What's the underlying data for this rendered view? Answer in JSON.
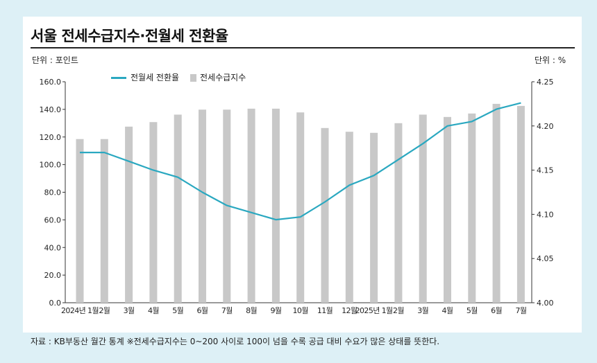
{
  "header": {
    "title": "서울 전세수급지수·전월세 전환율",
    "unit_left": "단위 : 포인트",
    "unit_right": "단위 : %"
  },
  "footer": {
    "source": "자료 : KB부동산 월간 통계 ※전세수급지수는 0~200 사이로 100이 넘을 수록 공급 대비 수요가 많은 상태를 뜻한다."
  },
  "colors": {
    "background": "#ddf0f6",
    "bar": "#c8c8c8",
    "line": "#2aa8c0"
  },
  "chart_data": {
    "type": "bar",
    "categories": [
      "2024년 1월",
      "2월",
      "3월",
      "4월",
      "5월",
      "6월",
      "7월",
      "8월",
      "9월",
      "10월",
      "11월",
      "12월",
      "2025년 1월",
      "2월",
      "3월",
      "4월",
      "5월",
      "6월",
      "7월"
    ],
    "series": [
      {
        "name": "전세수급지수",
        "type": "bar",
        "axis": "left",
        "values": [
          118.5,
          118.5,
          127.5,
          130.8,
          136.2,
          139.8,
          139.8,
          140.5,
          140.5,
          137.8,
          126.5,
          123.8,
          123.0,
          130.0,
          136.2,
          134.5,
          137.0,
          144.0,
          142.5
        ]
      },
      {
        "name": "전월세 전환율",
        "type": "line",
        "axis": "right",
        "values": [
          4.17,
          4.17,
          4.16,
          4.15,
          4.142,
          4.125,
          4.11,
          4.102,
          4.094,
          4.097,
          4.114,
          4.133,
          4.144,
          4.162,
          4.18,
          4.2,
          4.205,
          4.219,
          4.226
        ]
      }
    ],
    "y_left": {
      "range": [
        0,
        160
      ],
      "ticks": [
        "0.0",
        "20.0",
        "40.0",
        "60.0",
        "80.0",
        "100.0",
        "120.0",
        "140.0",
        "160.0"
      ]
    },
    "y_right": {
      "range": [
        4.0,
        4.25
      ],
      "ticks": [
        "4.00",
        "4.05",
        "4.10",
        "4.15",
        "4.20",
        "4.25"
      ]
    },
    "grid": false,
    "legend": "top-left"
  }
}
